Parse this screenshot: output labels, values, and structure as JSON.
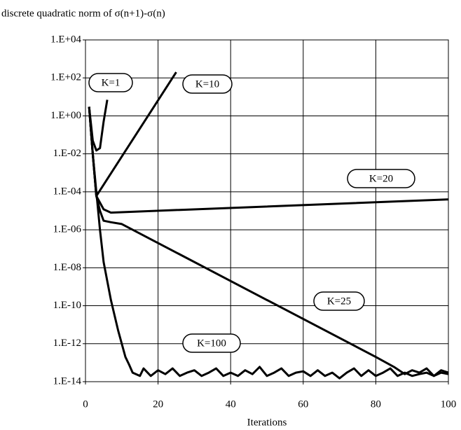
{
  "chart_data": {
    "type": "line",
    "title": "discrete quadratic norm of σ(n+1)-σ(n)",
    "x_label": "Iterations",
    "log_y": true,
    "grid": true,
    "color": "#000000",
    "xlim": [
      0,
      100
    ],
    "xticks": [
      0,
      20,
      40,
      60,
      80,
      100
    ],
    "ylim": [
      1e-14,
      10000
    ],
    "yticks": [
      {
        "value": 10000,
        "label": "1.E+04"
      },
      {
        "value": 100,
        "label": "1.E+02"
      },
      {
        "value": 1,
        "label": "1.E+00"
      },
      {
        "value": 0.01,
        "label": "1.E-02"
      },
      {
        "value": 0.0001,
        "label": "1.E-04"
      },
      {
        "value": 1e-06,
        "label": "1.E-06"
      },
      {
        "value": 1e-08,
        "label": "1.E-08"
      },
      {
        "value": 1e-10,
        "label": "1.E-10"
      },
      {
        "value": 1e-12,
        "label": "1.E-12"
      },
      {
        "value": 1e-14,
        "label": "1.E-14"
      }
    ],
    "series": [
      {
        "name": "K=1",
        "color": "#000000",
        "x": [
          1,
          2,
          3,
          4,
          5,
          6
        ],
        "values": [
          3,
          0.05,
          0.015,
          0.02,
          0.5,
          7
        ]
      },
      {
        "name": "K=10",
        "color": "#000000",
        "x": [
          1,
          2,
          3,
          25
        ],
        "values": [
          3,
          0.01,
          6e-05,
          200
        ]
      },
      {
        "name": "K=20",
        "color": "#000000",
        "x": [
          1,
          2,
          3,
          5,
          7,
          100
        ],
        "values": [
          3,
          0.01,
          6e-05,
          1.2e-05,
          8e-06,
          4e-05
        ]
      },
      {
        "name": "K=25",
        "color": "#000000",
        "x": [
          1,
          2,
          3,
          4,
          5,
          7,
          10,
          80,
          85,
          88,
          90,
          92,
          94,
          96,
          98,
          100
        ],
        "values": [
          3,
          0.01,
          6e-05,
          1e-05,
          3e-06,
          2.5e-06,
          2e-06,
          2e-13,
          6e-14,
          2.5e-14,
          4e-14,
          3e-14,
          5e-14,
          2e-14,
          4e-14,
          3e-14
        ]
      },
      {
        "name": "K=100",
        "color": "#000000",
        "x": [
          1,
          2,
          3,
          4,
          5,
          7,
          9,
          11,
          12,
          13,
          15,
          16,
          18,
          20,
          22,
          24,
          26,
          28,
          30,
          32,
          34,
          36,
          38,
          40,
          42,
          44,
          46,
          48,
          50,
          52,
          54,
          56,
          58,
          60,
          62,
          64,
          66,
          68,
          70,
          72,
          74,
          76,
          78,
          80,
          82,
          84,
          86,
          88,
          90,
          92,
          94,
          96,
          98,
          100
        ],
        "values": [
          3,
          0.01,
          0.0001,
          1e-06,
          2e-08,
          2e-10,
          5e-12,
          2e-13,
          8e-14,
          3e-14,
          2e-14,
          5e-14,
          2e-14,
          4e-14,
          2.5e-14,
          5e-14,
          2e-14,
          3e-14,
          4e-14,
          2e-14,
          3e-14,
          5e-14,
          2e-14,
          3e-14,
          2e-14,
          4e-14,
          2.5e-14,
          6e-14,
          2e-14,
          3e-14,
          5e-14,
          2e-14,
          3e-14,
          3.5e-14,
          2e-14,
          4e-14,
          2e-14,
          3e-14,
          1.5e-14,
          3e-14,
          5e-14,
          2e-14,
          4e-14,
          2e-14,
          3e-14,
          5e-14,
          2e-14,
          3e-14,
          2e-14,
          2.5e-14,
          3e-14,
          2e-14,
          3e-14,
          2.5e-14
        ]
      }
    ]
  }
}
